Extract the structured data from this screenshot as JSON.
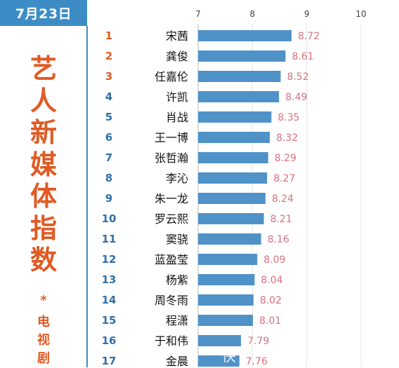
{
  "header": {
    "date": "7月23日"
  },
  "title": {
    "chars": [
      "艺",
      "人",
      "新",
      "媒",
      "体",
      "指",
      "数"
    ],
    "asterisk": "*",
    "sub_chars": [
      "电",
      "视",
      "剧"
    ]
  },
  "colors": {
    "date_bg": "#3d8cc6",
    "title": "#e05a23",
    "bar": "#4f92c8",
    "value_label": "#d9717e",
    "rank_top3": "#e05a23",
    "rank_other": "#2f6fa8"
  },
  "watermark": "快",
  "chart_data": {
    "type": "bar",
    "orientation": "horizontal",
    "xlim": [
      7,
      10
    ],
    "x_ticks": [
      7,
      8,
      9,
      10
    ],
    "grid": true,
    "categories": [
      "宋茜",
      "龚俊",
      "任嘉伦",
      "许凯",
      "肖战",
      "王一博",
      "张哲瀚",
      "李沁",
      "朱一龙",
      "罗云熙",
      "窦骁",
      "蓝盈莹",
      "杨紫",
      "周冬雨",
      "程潇",
      "于和伟",
      "金晨"
    ],
    "ranks": [
      "1",
      "2",
      "3",
      "4",
      "5",
      "6",
      "7",
      "8",
      "9",
      "10",
      "11",
      "12",
      "13",
      "14",
      "15",
      "16",
      "17"
    ],
    "values": [
      8.72,
      8.61,
      8.52,
      8.49,
      8.35,
      8.32,
      8.29,
      8.27,
      8.24,
      8.21,
      8.16,
      8.09,
      8.04,
      8.02,
      8.01,
      7.79,
      7.76
    ],
    "value_labels": [
      "8.72",
      "8.61",
      "8.52",
      "8.49",
      "8.35",
      "8.32",
      "8.29",
      "8.27",
      "8.24",
      "8.21",
      "8.16",
      "8.09",
      "8.04",
      "8.02",
      "8.01",
      "7.79",
      "7.76"
    ]
  }
}
